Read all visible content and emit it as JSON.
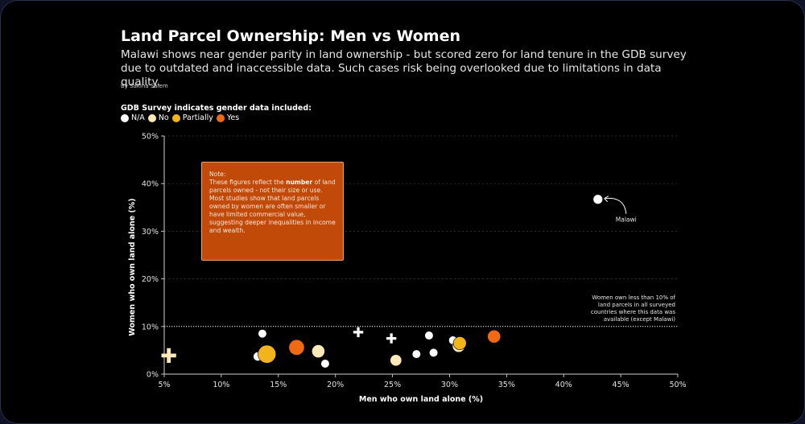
{
  "title": "Land Parcel Ownership: Men vs Women",
  "subtitle": "Malawi shows near gender parity in land ownership - but scored zero for land tenure in the GDB survey due to outdated and inaccessible data. Such cases risk being overlooked due to limitations in data quality.",
  "byline": "By Sakina Salem",
  "legend": {
    "title": "GDB Survey indicates gender data included:",
    "items": [
      {
        "label": "N/A",
        "color": "#ffffff"
      },
      {
        "label": "No",
        "color": "#fde9b8"
      },
      {
        "label": "Partially",
        "color": "#f2b41c"
      },
      {
        "label": "Yes",
        "color": "#f06a14"
      }
    ]
  },
  "note": {
    "label": "Note:",
    "line1_pre": "These figures reflect the ",
    "line1_bold": "number",
    "line1_post": " of land parcels owned - not their size or use.",
    "line2": "Most studies show that land parcels owned by women are often smaller or have limited commercial value, suggesting deeper inequalities in income and wealth."
  },
  "annotations": {
    "malawi": "Malawi",
    "threshold": [
      "Women own less than 10% of",
      "land parcels in all surveyed",
      "countries where this data was",
      "available (except Malawi)"
    ]
  },
  "chart_data": {
    "type": "scatter",
    "title": "Land Parcel Ownership: Men vs Women",
    "xlabel": "Men who own land alone (%)",
    "ylabel": "Women who own land alone (%)",
    "xlim": [
      5,
      50
    ],
    "ylim": [
      0,
      50
    ],
    "xticks": [
      5,
      10,
      15,
      20,
      25,
      30,
      35,
      40,
      45,
      50
    ],
    "yticks": [
      0,
      10,
      20,
      30,
      40,
      50
    ],
    "xtick_labels": [
      "5%",
      "10%",
      "15%",
      "20%",
      "25%",
      "30%",
      "35%",
      "40%",
      "45%",
      "50%"
    ],
    "ytick_labels": [
      "0%",
      "10%",
      "20%",
      "30%",
      "40%",
      "50%"
    ],
    "reference_line": {
      "y": 10,
      "style": "dotted"
    },
    "gridlines": "horizontal-dashed",
    "categories": {
      "N/A": "#ffffff",
      "No": "#fde9b8",
      "Partially": "#f2b41c",
      "Yes": "#f06a14"
    },
    "points": [
      {
        "x": 5.4,
        "y": 3.9,
        "cat": "No",
        "size": 1.0,
        "shape": "cross"
      },
      {
        "x": 13.2,
        "y": 3.7,
        "cat": "N/A",
        "size": 0.5
      },
      {
        "x": 13.6,
        "y": 8.5,
        "cat": "N/A",
        "size": 0.45
      },
      {
        "x": 13.8,
        "y": 4.2,
        "cat": "N/A",
        "size": 0.55
      },
      {
        "x": 14.0,
        "y": 4.2,
        "cat": "Partially",
        "size": 1.4
      },
      {
        "x": 16.6,
        "y": 5.6,
        "cat": "Yes",
        "size": 1.15
      },
      {
        "x": 18.5,
        "y": 4.8,
        "cat": "No",
        "size": 0.9
      },
      {
        "x": 19.1,
        "y": 2.2,
        "cat": "N/A",
        "size": 0.45
      },
      {
        "x": 22.0,
        "y": 8.8,
        "cat": "N/A",
        "size": 0.55,
        "shape": "cross"
      },
      {
        "x": 24.9,
        "y": 7.5,
        "cat": "N/A",
        "size": 0.55,
        "shape": "cross"
      },
      {
        "x": 25.3,
        "y": 2.9,
        "cat": "No",
        "size": 0.75
      },
      {
        "x": 27.1,
        "y": 4.2,
        "cat": "N/A",
        "size": 0.45
      },
      {
        "x": 28.2,
        "y": 8.1,
        "cat": "N/A",
        "size": 0.45
      },
      {
        "x": 28.6,
        "y": 4.5,
        "cat": "N/A",
        "size": 0.45
      },
      {
        "x": 30.3,
        "y": 7.1,
        "cat": "N/A",
        "size": 0.45
      },
      {
        "x": 30.8,
        "y": 5.9,
        "cat": "No",
        "size": 0.85
      },
      {
        "x": 30.9,
        "y": 6.5,
        "cat": "Partially",
        "size": 0.9
      },
      {
        "x": 33.9,
        "y": 7.9,
        "cat": "Yes",
        "size": 0.9
      },
      {
        "x": 43.0,
        "y": 36.7,
        "cat": "N/A",
        "size": 0.55,
        "label": "Malawi"
      }
    ]
  }
}
